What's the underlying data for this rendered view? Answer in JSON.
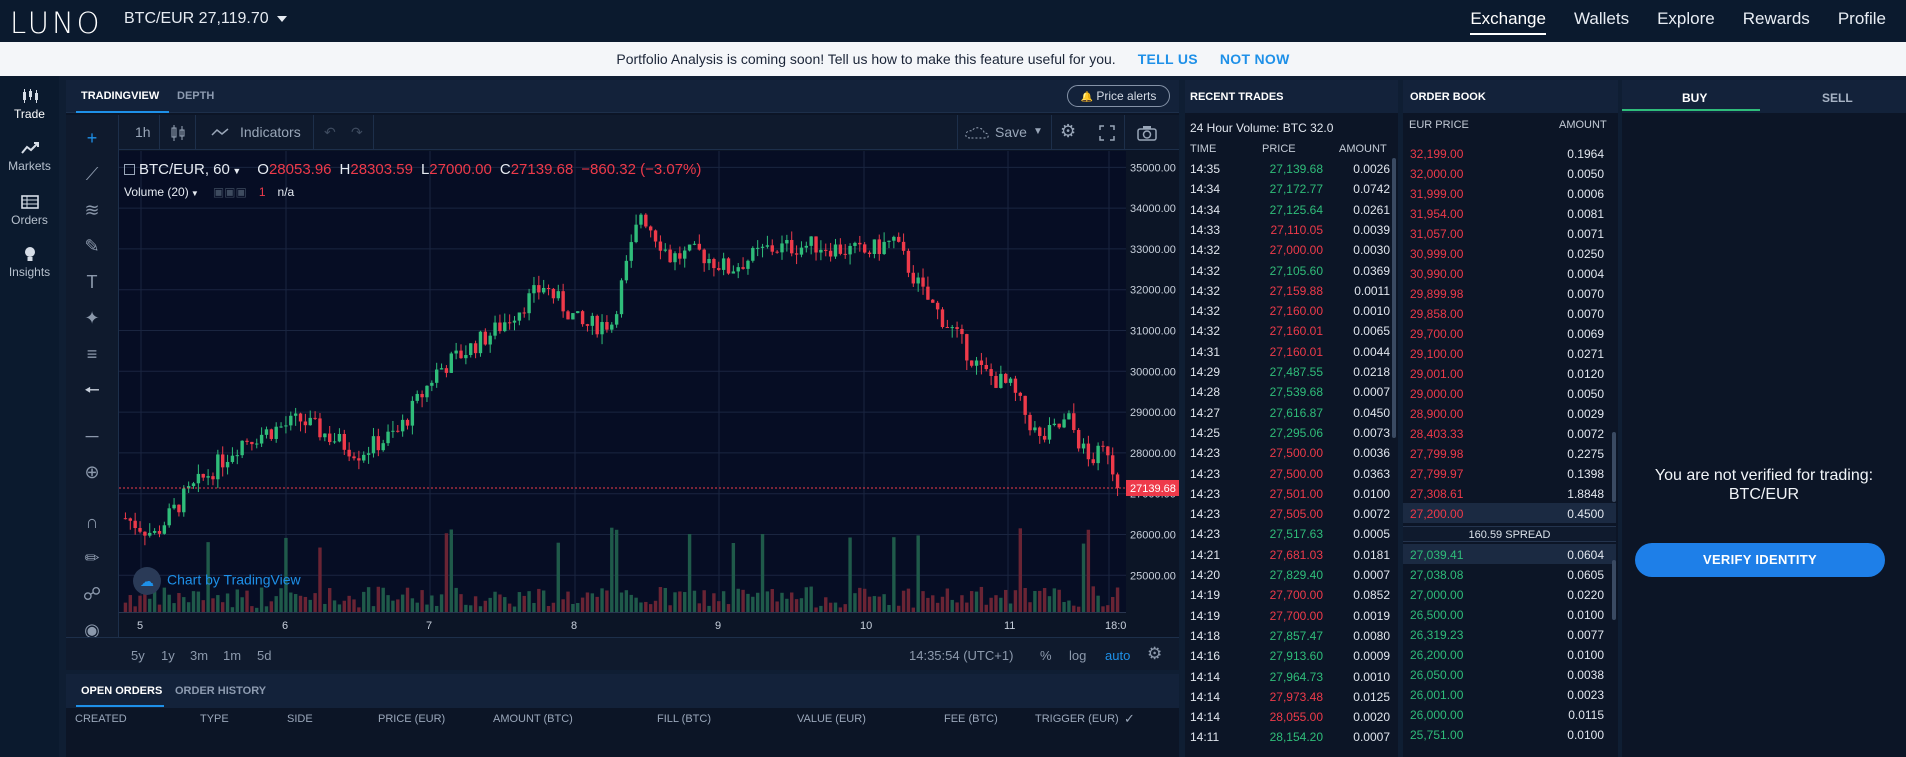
{
  "topbar": {
    "logo": "LUNO",
    "pair_label": "BTC/EUR 27,119.70",
    "nav": [
      {
        "label": "Exchange",
        "active": true
      },
      {
        "label": "Wallets"
      },
      {
        "label": "Explore"
      },
      {
        "label": "Rewards"
      },
      {
        "label": "Profile"
      }
    ]
  },
  "banner": {
    "text": "Portfolio Analysis is coming soon! Tell us how to make this feature useful for you.",
    "tell_us": "TELL US",
    "not_now": "NOT NOW"
  },
  "sidebar": [
    {
      "label": "Trade",
      "icon": "candles-icon"
    },
    {
      "label": "Markets",
      "icon": "trend-line-icon"
    },
    {
      "label": "Orders",
      "icon": "list-icon"
    },
    {
      "label": "Insights",
      "icon": "lightbulb-icon"
    }
  ],
  "chart_panel": {
    "tabs": [
      "TRADINGVIEW",
      "DEPTH"
    ],
    "price_alerts": "Price alerts",
    "toolbar": {
      "interval": "1h",
      "indicators": "Indicators",
      "save": "Save"
    },
    "legend": {
      "symbol": "BTC/EUR, 60",
      "o_label": "O",
      "o_val": "28053.96",
      "h_label": "H",
      "h_val": "28303.59",
      "l_label": "L",
      "l_val": "27000.00",
      "c_label": "C",
      "c_val": "27139.68",
      "change": "−860.32 (−3.07%)",
      "volume": "Volume (20)",
      "vol_val1": "1",
      "vol_val2": "n/a"
    },
    "watermark": "Chart by TradingView",
    "last_price_label": "27139.68",
    "bottom": {
      "ranges": [
        "5y",
        "1y",
        "3m",
        "1m",
        "5d"
      ],
      "clock": "14:35:54 (UTC+1)",
      "pct": "%",
      "log": "log",
      "auto": "auto"
    }
  },
  "chart_data": {
    "type": "candlestick",
    "yticks": [
      25000,
      26000,
      27000,
      28000,
      29000,
      30000,
      31000,
      32000,
      33000,
      34000,
      35000
    ],
    "ytick_labels": [
      "25000.00",
      "26000.00",
      "27000.00",
      "28000.00",
      "29000.00",
      "30000.00",
      "31000.00",
      "32000.00",
      "33000.00",
      "34000.00",
      "35000.00"
    ],
    "xticks": [
      "5",
      "6",
      "7",
      "8",
      "9",
      "10",
      "11",
      "18:0"
    ],
    "ylim": [
      24100,
      35400
    ],
    "last_price": 27139.68,
    "colors": {
      "up": "#2fbd7a",
      "down": "#ee3a4a"
    },
    "anchors": [
      [
        0,
        26400
      ],
      [
        6,
        26000
      ],
      [
        12,
        26900
      ],
      [
        24,
        28300
      ],
      [
        36,
        28800
      ],
      [
        48,
        28000
      ],
      [
        56,
        28500
      ],
      [
        64,
        30000
      ],
      [
        76,
        31000
      ],
      [
        86,
        32100
      ],
      [
        94,
        31100
      ],
      [
        100,
        31200
      ],
      [
        106,
        33900
      ],
      [
        112,
        32800
      ],
      [
        118,
        32900
      ],
      [
        124,
        32500
      ],
      [
        132,
        33000
      ],
      [
        142,
        33100
      ],
      [
        152,
        32900
      ],
      [
        158,
        33200
      ],
      [
        164,
        31900
      ],
      [
        170,
        31000
      ],
      [
        176,
        30000
      ],
      [
        182,
        29600
      ],
      [
        188,
        28300
      ],
      [
        194,
        28800
      ],
      [
        198,
        27800
      ],
      [
        202,
        28100
      ],
      [
        204,
        27139.68
      ]
    ]
  },
  "orders": {
    "tabs": [
      "OPEN ORDERS",
      "ORDER HISTORY"
    ],
    "columns": [
      "CREATED",
      "TYPE",
      "SIDE",
      "PRICE (EUR)",
      "AMOUNT (BTC)",
      "FILL (BTC)",
      "VALUE (EUR)",
      "FEE (BTC)",
      "TRIGGER (EUR)"
    ]
  },
  "recent_trades": {
    "title": "RECENT TRADES",
    "volume_label": "24 Hour Volume:",
    "volume_value": "BTC 32.0",
    "columns": [
      "TIME",
      "PRICE",
      "AMOUNT"
    ],
    "rows": [
      {
        "time": "14:35",
        "price": "27,139.68",
        "amount": "0.0026",
        "side": "buy"
      },
      {
        "time": "14:34",
        "price": "27,172.77",
        "amount": "0.0742",
        "side": "buy"
      },
      {
        "time": "14:34",
        "price": "27,125.64",
        "amount": "0.0261",
        "side": "buy"
      },
      {
        "time": "14:33",
        "price": "27,110.05",
        "amount": "0.0039",
        "side": "sell"
      },
      {
        "time": "14:32",
        "price": "27,000.00",
        "amount": "0.0030",
        "side": "sell"
      },
      {
        "time": "14:32",
        "price": "27,105.60",
        "amount": "0.0369",
        "side": "buy"
      },
      {
        "time": "14:32",
        "price": "27,159.88",
        "amount": "0.0011",
        "side": "sell"
      },
      {
        "time": "14:32",
        "price": "27,160.00",
        "amount": "0.0010",
        "side": "sell"
      },
      {
        "time": "14:32",
        "price": "27,160.01",
        "amount": "0.0065",
        "side": "sell"
      },
      {
        "time": "14:31",
        "price": "27,160.01",
        "amount": "0.0044",
        "side": "sell"
      },
      {
        "time": "14:29",
        "price": "27,487.55",
        "amount": "0.0218",
        "side": "buy"
      },
      {
        "time": "14:28",
        "price": "27,539.68",
        "amount": "0.0007",
        "side": "buy"
      },
      {
        "time": "14:27",
        "price": "27,616.87",
        "amount": "0.0450",
        "side": "buy"
      },
      {
        "time": "14:25",
        "price": "27,295.06",
        "amount": "0.0073",
        "side": "buy"
      },
      {
        "time": "14:23",
        "price": "27,500.00",
        "amount": "0.0036",
        "side": "sell"
      },
      {
        "time": "14:23",
        "price": "27,500.00",
        "amount": "0.0363",
        "side": "sell"
      },
      {
        "time": "14:23",
        "price": "27,501.00",
        "amount": "0.0100",
        "side": "sell"
      },
      {
        "time": "14:23",
        "price": "27,505.00",
        "amount": "0.0072",
        "side": "sell"
      },
      {
        "time": "14:23",
        "price": "27,517.63",
        "amount": "0.0005",
        "side": "buy"
      },
      {
        "time": "14:21",
        "price": "27,681.03",
        "amount": "0.0181",
        "side": "sell"
      },
      {
        "time": "14:20",
        "price": "27,829.40",
        "amount": "0.0007",
        "side": "buy"
      },
      {
        "time": "14:19",
        "price": "27,700.00",
        "amount": "0.0852",
        "side": "sell"
      },
      {
        "time": "14:19",
        "price": "27,700.00",
        "amount": "0.0019",
        "side": "sell"
      },
      {
        "time": "14:18",
        "price": "27,857.47",
        "amount": "0.0080",
        "side": "buy"
      },
      {
        "time": "14:16",
        "price": "27,913.60",
        "amount": "0.0009",
        "side": "buy"
      },
      {
        "time": "14:14",
        "price": "27,964.73",
        "amount": "0.0010",
        "side": "buy"
      },
      {
        "time": "14:14",
        "price": "27,973.48",
        "amount": "0.0125",
        "side": "sell"
      },
      {
        "time": "14:14",
        "price": "28,055.00",
        "amount": "0.0020",
        "side": "sell"
      },
      {
        "time": "14:11",
        "price": "28,154.20",
        "amount": "0.0007",
        "side": "buy"
      }
    ]
  },
  "order_book": {
    "title": "ORDER BOOK",
    "columns": [
      "EUR PRICE",
      "AMOUNT"
    ],
    "asks": [
      {
        "price": "32,199.00",
        "amount": "0.1964"
      },
      {
        "price": "32,000.00",
        "amount": "0.0050"
      },
      {
        "price": "31,999.00",
        "amount": "0.0006"
      },
      {
        "price": "31,954.00",
        "amount": "0.0081"
      },
      {
        "price": "31,057.00",
        "amount": "0.0071"
      },
      {
        "price": "30,999.00",
        "amount": "0.0250"
      },
      {
        "price": "30,990.00",
        "amount": "0.0004"
      },
      {
        "price": "29,899.98",
        "amount": "0.0070"
      },
      {
        "price": "29,858.00",
        "amount": "0.0070"
      },
      {
        "price": "29,700.00",
        "amount": "0.0069"
      },
      {
        "price": "29,100.00",
        "amount": "0.0271"
      },
      {
        "price": "29,001.00",
        "amount": "0.0120"
      },
      {
        "price": "29,000.00",
        "amount": "0.0050"
      },
      {
        "price": "28,900.00",
        "amount": "0.0029"
      },
      {
        "price": "28,403.33",
        "amount": "0.0072"
      },
      {
        "price": "27,799.98",
        "amount": "0.2275"
      },
      {
        "price": "27,799.97",
        "amount": "0.1398"
      },
      {
        "price": "27,308.61",
        "amount": "1.8848"
      },
      {
        "price": "27,200.00",
        "amount": "0.4500"
      }
    ],
    "spread": "160.59 SPREAD",
    "bids": [
      {
        "price": "27,039.41",
        "amount": "0.0604"
      },
      {
        "price": "27,038.08",
        "amount": "0.0605"
      },
      {
        "price": "27,000.00",
        "amount": "0.0220"
      },
      {
        "price": "26,500.00",
        "amount": "0.0100"
      },
      {
        "price": "26,319.23",
        "amount": "0.0077"
      },
      {
        "price": "26,200.00",
        "amount": "0.0100"
      },
      {
        "price": "26,050.00",
        "amount": "0.0038"
      },
      {
        "price": "26,001.00",
        "amount": "0.0023"
      },
      {
        "price": "26,000.00",
        "amount": "0.0115"
      },
      {
        "price": "25,751.00",
        "amount": "0.0100"
      }
    ]
  },
  "trade_panel": {
    "tabs": [
      "BUY",
      "SELL"
    ],
    "message_line1": "You are not verified for trading:",
    "message_line2": "BTC/EUR",
    "verify_button": "VERIFY IDENTITY"
  }
}
